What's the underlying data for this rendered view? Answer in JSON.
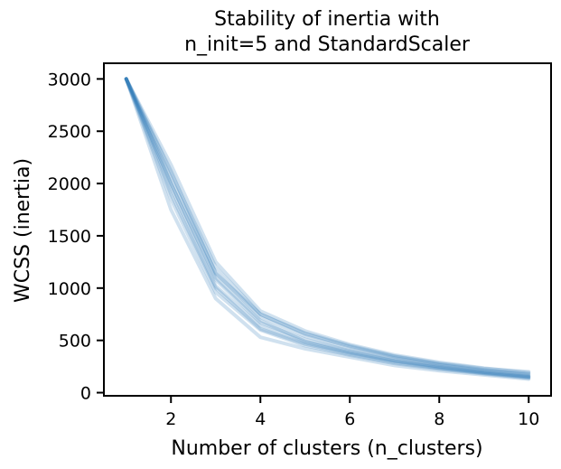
{
  "chart_data": {
    "type": "line",
    "title_lines": [
      "Stability of inertia with",
      "n_init=5 and StandardScaler"
    ],
    "xlabel": "Number of clusters (n_clusters)",
    "ylabel": "WCSS (inertia)",
    "xlim": [
      0.5,
      10.5
    ],
    "ylim": [
      -30,
      3150
    ],
    "x_ticks": [
      2,
      4,
      6,
      8,
      10
    ],
    "y_ticks": [
      0,
      500,
      1000,
      1500,
      2000,
      2500,
      3000
    ],
    "grid": false,
    "legend": "none",
    "line_color": "#2878b5",
    "x": [
      1,
      2,
      3,
      4,
      5,
      6,
      7,
      8,
      9,
      10
    ],
    "series": [
      {
        "values": [
          3000,
          1750,
          900,
          530,
          420,
          340,
          260,
          210,
          170,
          130
        ]
      },
      {
        "values": [
          3000,
          1850,
          960,
          600,
          450,
          360,
          280,
          225,
          180,
          140
        ]
      },
      {
        "values": [
          3000,
          1950,
          1020,
          640,
          480,
          380,
          300,
          240,
          190,
          150
        ]
      },
      {
        "values": [
          3000,
          2000,
          1080,
          670,
          510,
          400,
          315,
          250,
          200,
          160
        ]
      },
      {
        "values": [
          3000,
          2050,
          1150,
          720,
          540,
          420,
          330,
          265,
          210,
          170
        ]
      },
      {
        "values": [
          3000,
          2100,
          1200,
          750,
          560,
          440,
          345,
          275,
          220,
          180
        ]
      },
      {
        "values": [
          3000,
          2180,
          1250,
          780,
          590,
          460,
          360,
          290,
          235,
          190
        ]
      },
      {
        "values": [
          3000,
          2000,
          1100,
          690,
          490,
          390,
          305,
          245,
          195,
          155
        ]
      },
      {
        "values": [
          3000,
          1900,
          1000,
          610,
          465,
          370,
          290,
          235,
          185,
          145
        ]
      },
      {
        "values": [
          3000,
          2120,
          1140,
          750,
          570,
          450,
          350,
          280,
          230,
          200
        ]
      }
    ]
  }
}
